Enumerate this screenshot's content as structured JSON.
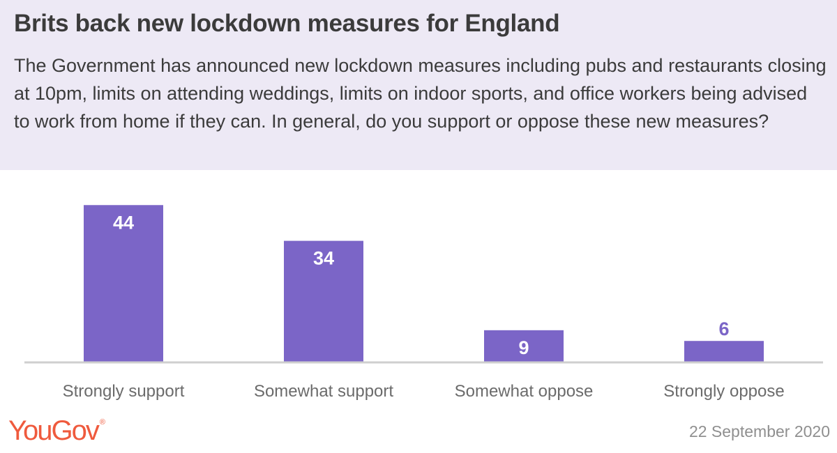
{
  "header": {
    "title": "Brits back new lockdown measures for England",
    "subtitle": "The Government has announced new lockdown measures including pubs and restaurants closing at 10pm, limits on attending weddings, limits on indoor sports, and office workers being advised to work from home if they can. In general, do you support or oppose these new measures?"
  },
  "footer": {
    "brand": "YouGov",
    "date": "22 September  2020"
  },
  "colors": {
    "bar": "#7b65c7",
    "header_bg": "#ede9f5",
    "brand": "#ef5a3d",
    "axis": "#cfcfcf"
  },
  "chart_data": {
    "type": "bar",
    "categories": [
      "Strongly support",
      "Somewhat support",
      "Somewhat oppose",
      "Strongly oppose"
    ],
    "values": [
      44,
      34,
      9,
      6
    ],
    "title": "",
    "xlabel": "",
    "ylabel": "",
    "ylim": [
      0,
      46
    ],
    "grid": false,
    "data_labels": true
  }
}
